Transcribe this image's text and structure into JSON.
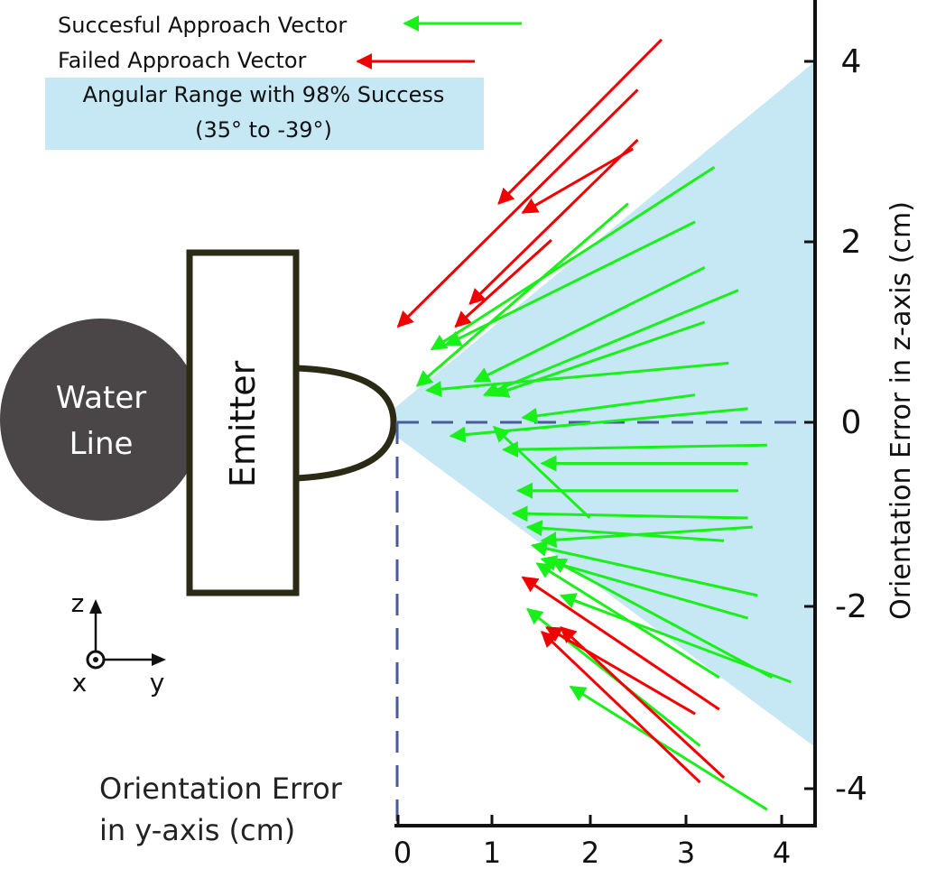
{
  "legend": {
    "success_label": "Succesful Approach Vector",
    "failed_label": "Failed Approach Vector",
    "range_line1": "Angular Range with 98% Success",
    "range_line2": "(35° to -39°)"
  },
  "labels": {
    "water_line_1": "Water",
    "water_line_2": "Line",
    "emitter": "Emitter",
    "x_axis_title_1": "Orientation Error",
    "x_axis_title_2": "in y-axis (cm)",
    "y_axis_title": "Orientation Error in z-axis (cm)"
  },
  "axes_glyph": {
    "z": "z",
    "x": "x",
    "y": "y"
  },
  "colors": {
    "success": "#19f019",
    "failed": "#f00000",
    "range_fill": "#c6e8f5",
    "water_line": "#4a4546",
    "emitter_border": "#2b2a14",
    "dashed_axis": "#4b5a9b"
  },
  "chart_data": {
    "type": "vector-field",
    "xlabel": "Orientation Error in y-axis (cm)",
    "ylabel": "Orientation Error in z-axis (cm)",
    "xlim": [
      0,
      4.4
    ],
    "ylim": [
      -4.4,
      4.6
    ],
    "x_ticks": [
      "0",
      "1",
      "2",
      "3",
      "4"
    ],
    "y_ticks": [
      "4",
      "2",
      "0",
      "-2",
      "-4"
    ],
    "angular_range_deg": [
      35,
      -39
    ],
    "vectors": [
      {
        "status": "failed",
        "from": [
          2.75,
          4.2
        ],
        "to": [
          1.05,
          2.4
        ]
      },
      {
        "status": "failed",
        "from": [
          2.5,
          3.65
        ],
        "to": [
          0.0,
          1.05
        ]
      },
      {
        "status": "failed",
        "from": [
          2.5,
          3.1
        ],
        "to": [
          0.75,
          1.3
        ]
      },
      {
        "status": "failed",
        "from": [
          2.45,
          3.0
        ],
        "to": [
          1.3,
          2.3
        ]
      },
      {
        "status": "failed",
        "from": [
          1.6,
          2.0
        ],
        "to": [
          0.6,
          1.05
        ]
      },
      {
        "status": "success",
        "from": [
          3.3,
          2.8
        ],
        "to": [
          0.35,
          0.8
        ]
      },
      {
        "status": "success",
        "from": [
          2.4,
          2.4
        ],
        "to": [
          0.2,
          0.4
        ]
      },
      {
        "status": "success",
        "from": [
          3.1,
          2.2
        ],
        "to": [
          0.5,
          0.85
        ]
      },
      {
        "status": "success",
        "from": [
          3.2,
          1.7
        ],
        "to": [
          0.8,
          0.45
        ]
      },
      {
        "status": "success",
        "from": [
          3.55,
          1.45
        ],
        "to": [
          0.9,
          0.3
        ]
      },
      {
        "status": "success",
        "from": [
          3.2,
          1.1
        ],
        "to": [
          1.0,
          0.3
        ]
      },
      {
        "status": "success",
        "from": [
          3.45,
          0.65
        ],
        "to": [
          0.3,
          0.35
        ]
      },
      {
        "status": "success",
        "from": [
          3.1,
          0.3
        ],
        "to": [
          1.3,
          0.05
        ]
      },
      {
        "status": "success",
        "from": [
          3.65,
          0.15
        ],
        "to": [
          0.55,
          -0.15
        ]
      },
      {
        "status": "success",
        "from": [
          3.85,
          -0.25
        ],
        "to": [
          1.1,
          -0.3
        ]
      },
      {
        "status": "success",
        "from": [
          3.65,
          -0.45
        ],
        "to": [
          1.5,
          -0.45
        ]
      },
      {
        "status": "success",
        "from": [
          3.55,
          -0.75
        ],
        "to": [
          1.25,
          -0.75
        ]
      },
      {
        "status": "success",
        "from": [
          3.65,
          -1.05
        ],
        "to": [
          1.2,
          -1.0
        ]
      },
      {
        "status": "success",
        "from": [
          3.4,
          -1.3
        ],
        "to": [
          1.35,
          -1.15
        ]
      },
      {
        "status": "success",
        "from": [
          3.7,
          -1.15
        ],
        "to": [
          1.5,
          -1.3
        ]
      },
      {
        "status": "success",
        "from": [
          2.0,
          -1.05
        ],
        "to": [
          1.0,
          -0.05
        ]
      },
      {
        "status": "success",
        "from": [
          3.75,
          -1.9
        ],
        "to": [
          1.4,
          -1.35
        ]
      },
      {
        "status": "success",
        "from": [
          3.65,
          -2.15
        ],
        "to": [
          1.5,
          -1.5
        ]
      },
      {
        "status": "success",
        "from": [
          3.9,
          -2.8
        ],
        "to": [
          1.6,
          -1.5
        ]
      },
      {
        "status": "success",
        "from": [
          4.1,
          -2.85
        ],
        "to": [
          1.7,
          -1.9
        ]
      },
      {
        "status": "success",
        "from": [
          3.35,
          -2.8
        ],
        "to": [
          1.45,
          -1.55
        ]
      },
      {
        "status": "success",
        "from": [
          3.15,
          -3.55
        ],
        "to": [
          1.35,
          -2.05
        ]
      },
      {
        "status": "success",
        "from": [
          3.85,
          -4.25
        ],
        "to": [
          1.8,
          -2.9
        ]
      },
      {
        "status": "failed",
        "from": [
          3.35,
          -3.15
        ],
        "to": [
          1.3,
          -1.7
        ]
      },
      {
        "status": "failed",
        "from": [
          3.1,
          -3.2
        ],
        "to": [
          1.55,
          -2.25
        ]
      },
      {
        "status": "failed",
        "from": [
          3.4,
          -3.9
        ],
        "to": [
          1.7,
          -2.25
        ]
      },
      {
        "status": "failed",
        "from": [
          3.15,
          -3.95
        ],
        "to": [
          1.5,
          -2.3
        ]
      }
    ]
  }
}
